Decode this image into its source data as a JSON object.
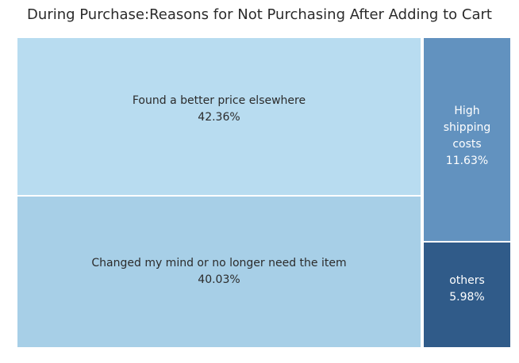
{
  "chart_data": {
    "type": "treemap",
    "title": "During Purchase:Reasons for Not Purchasing After Adding to Cart",
    "items": [
      {
        "label": "Found a better price elsewhere",
        "percent_label": "42.36%",
        "value": 42.36,
        "color": "#b8dcf0",
        "text_color": "#2b2b2b"
      },
      {
        "label": "Changed my mind or no longer need the item",
        "percent_label": "40.03%",
        "value": 40.03,
        "color": "#a7cfe7",
        "text_color": "#2b2b2b"
      },
      {
        "label": "High shipping costs",
        "percent_label": "11.63%",
        "value": 11.63,
        "color": "#6292bf",
        "text_color": "#ffffff"
      },
      {
        "label": "others",
        "percent_label": "5.98%",
        "value": 5.98,
        "color": "#305b89",
        "text_color": "#ffffff"
      }
    ]
  }
}
